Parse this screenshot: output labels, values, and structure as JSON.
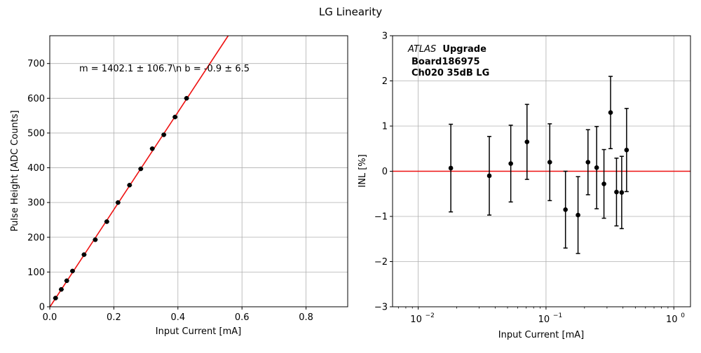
{
  "figure": {
    "title": "LG Linearity"
  },
  "colors": {
    "fit_line": "#ee1111",
    "zero_line": "#ee1111",
    "points": "#000000",
    "grid": "#b0b0b0",
    "axes": "#000000"
  },
  "chart_data": [
    {
      "type": "scatter",
      "xlabel": "Input Current [mA]",
      "ylabel": "Pulse Height [ADC Counts]",
      "xlim": [
        0,
        0.93
      ],
      "ylim": [
        0,
        780
      ],
      "x_ticks": [
        0.0,
        0.2,
        0.4,
        0.6,
        0.8
      ],
      "x_tick_labels": [
        "0.0",
        "0.2",
        "0.4",
        "0.6",
        "0.8"
      ],
      "y_ticks": [
        0,
        100,
        200,
        300,
        400,
        500,
        600,
        700
      ],
      "y_tick_labels": [
        "0",
        "100",
        "200",
        "300",
        "400",
        "500",
        "600",
        "700"
      ],
      "grid": true,
      "annotation": "m = 1402.1 ± 106.7\\n b = -0.9 ± 6.5",
      "fit": {
        "slope": 1402.1,
        "intercept": -0.9
      },
      "points": [
        {
          "x": 0.018,
          "y": 25
        },
        {
          "x": 0.036,
          "y": 50
        },
        {
          "x": 0.053,
          "y": 75
        },
        {
          "x": 0.071,
          "y": 103
        },
        {
          "x": 0.107,
          "y": 150
        },
        {
          "x": 0.142,
          "y": 193
        },
        {
          "x": 0.178,
          "y": 245
        },
        {
          "x": 0.213,
          "y": 300
        },
        {
          "x": 0.249,
          "y": 350
        },
        {
          "x": 0.284,
          "y": 397
        },
        {
          "x": 0.32,
          "y": 455
        },
        {
          "x": 0.356,
          "y": 495
        },
        {
          "x": 0.391,
          "y": 546
        },
        {
          "x": 0.427,
          "y": 600
        }
      ]
    },
    {
      "type": "scatter",
      "xlabel": "Input Current [mA]",
      "ylabel": "INL [%]",
      "xscale": "log",
      "xlim": [
        0.0063,
        1.35
      ],
      "ylim": [
        -3,
        3
      ],
      "x_ticks": [
        0.01,
        0.1,
        1
      ],
      "x_tick_labels": [
        "10",
        "10",
        "10"
      ],
      "x_tick_exponents": [
        "−2",
        "−1",
        "0"
      ],
      "y_ticks": [
        -3,
        -2,
        -1,
        0,
        1,
        2,
        3
      ],
      "y_tick_labels": [
        "−3",
        "−2",
        "−1",
        "0",
        "1",
        "2",
        "3"
      ],
      "grid": true,
      "annotation": {
        "italic": "ATLAS",
        "bold1": "Upgrade",
        "bold2": "Board186975",
        "bold3": "Ch020 35dB LG"
      },
      "reference_line_y": 0,
      "points": [
        {
          "x": 0.018,
          "y": 0.07,
          "err": 0.97
        },
        {
          "x": 0.036,
          "y": -0.1,
          "err": 0.87
        },
        {
          "x": 0.053,
          "y": 0.17,
          "err": 0.85
        },
        {
          "x": 0.071,
          "y": 0.65,
          "err": 0.83
        },
        {
          "x": 0.107,
          "y": 0.2,
          "err": 0.85
        },
        {
          "x": 0.142,
          "y": -0.85,
          "err": 0.85
        },
        {
          "x": 0.178,
          "y": -0.97,
          "err": 0.85
        },
        {
          "x": 0.213,
          "y": 0.2,
          "err": 0.72
        },
        {
          "x": 0.249,
          "y": 0.08,
          "err": 0.91
        },
        {
          "x": 0.284,
          "y": -0.28,
          "err": 0.76
        },
        {
          "x": 0.32,
          "y": 1.3,
          "err": 0.8
        },
        {
          "x": 0.356,
          "y": -0.46,
          "err": 0.75
        },
        {
          "x": 0.391,
          "y": -0.47,
          "err": 0.8
        },
        {
          "x": 0.427,
          "y": 0.47,
          "err": 0.92
        }
      ]
    }
  ]
}
